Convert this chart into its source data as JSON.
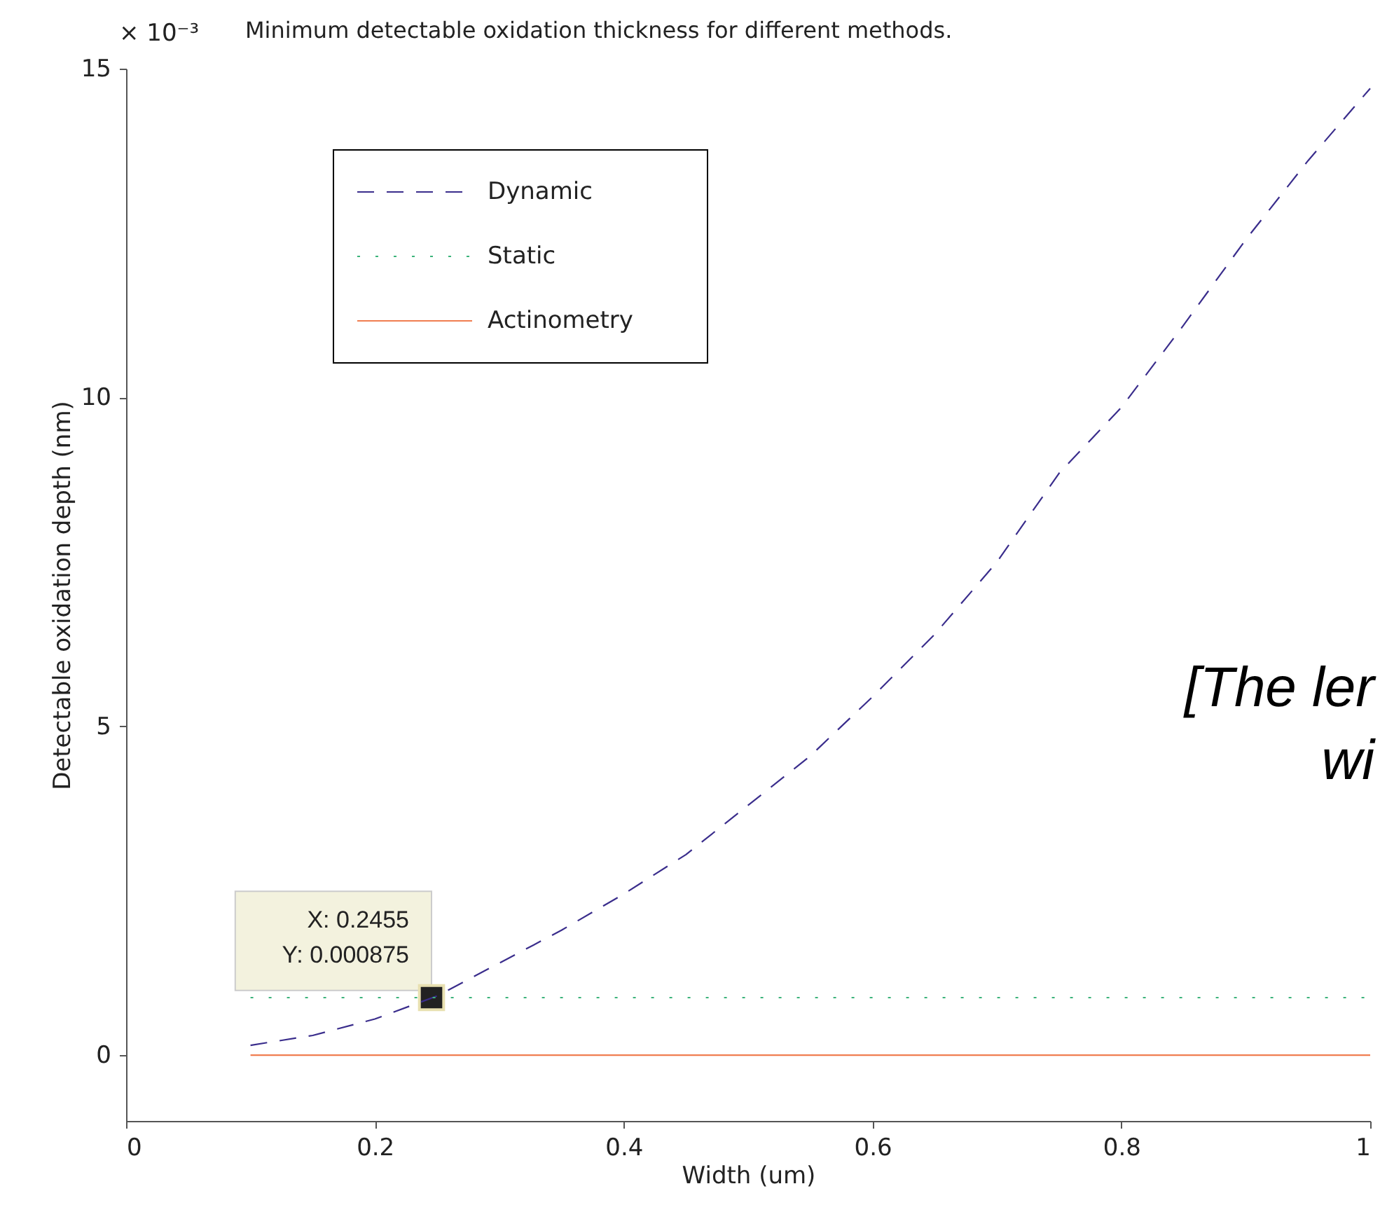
{
  "chart_data": {
    "type": "line",
    "title": "Minimum detectable oxidation thickness for different methods.",
    "xlabel": "Width (um)",
    "ylabel": "Detectable oxidation depth (nm)",
    "x": [
      0.1,
      0.15,
      0.2,
      0.25,
      0.3,
      0.35,
      0.4,
      0.45,
      0.5,
      0.55,
      0.6,
      0.65,
      0.7,
      0.75,
      0.8,
      0.85,
      0.9,
      0.95,
      1.0
    ],
    "series": [
      {
        "name": "Dynamic",
        "color": "#3a2d8c",
        "line_style": "dashed",
        "values": [
          0.15,
          0.3,
          0.55,
          0.9,
          1.4,
          1.9,
          2.45,
          3.05,
          3.8,
          4.55,
          5.45,
          6.4,
          7.5,
          8.85,
          9.85,
          11.1,
          12.4,
          13.6,
          14.7
        ]
      },
      {
        "name": "Static",
        "color": "#3cb37a",
        "line_style": "dotted",
        "values": [
          0.875,
          0.875,
          0.875,
          0.875,
          0.875,
          0.875,
          0.875,
          0.875,
          0.875,
          0.875,
          0.875,
          0.875,
          0.875,
          0.875,
          0.875,
          0.875,
          0.875,
          0.875,
          0.875
        ]
      },
      {
        "name": "Actinometry",
        "color": "#f07d50",
        "line_style": "solid",
        "values": [
          0,
          0,
          0,
          0,
          0,
          0,
          0,
          0,
          0,
          0,
          0,
          0,
          0,
          0,
          0,
          0,
          0,
          0,
          0
        ]
      }
    ],
    "xlim": [
      0,
      1
    ],
    "xticks": [
      0,
      0.2,
      0.4,
      0.6,
      0.8,
      1
    ],
    "ylim": [
      -1,
      15
    ],
    "yticks": [
      0,
      5,
      10,
      15
    ],
    "grid": false,
    "legend": "top left",
    "marker": "none",
    "annotations": [
      "× 10⁻³",
      {
        "text": "X: 0.2455\nY: 0.000875",
        "x": 0.2455,
        "y": 0.875
      },
      "[The ler",
      "wi"
    ]
  }
}
